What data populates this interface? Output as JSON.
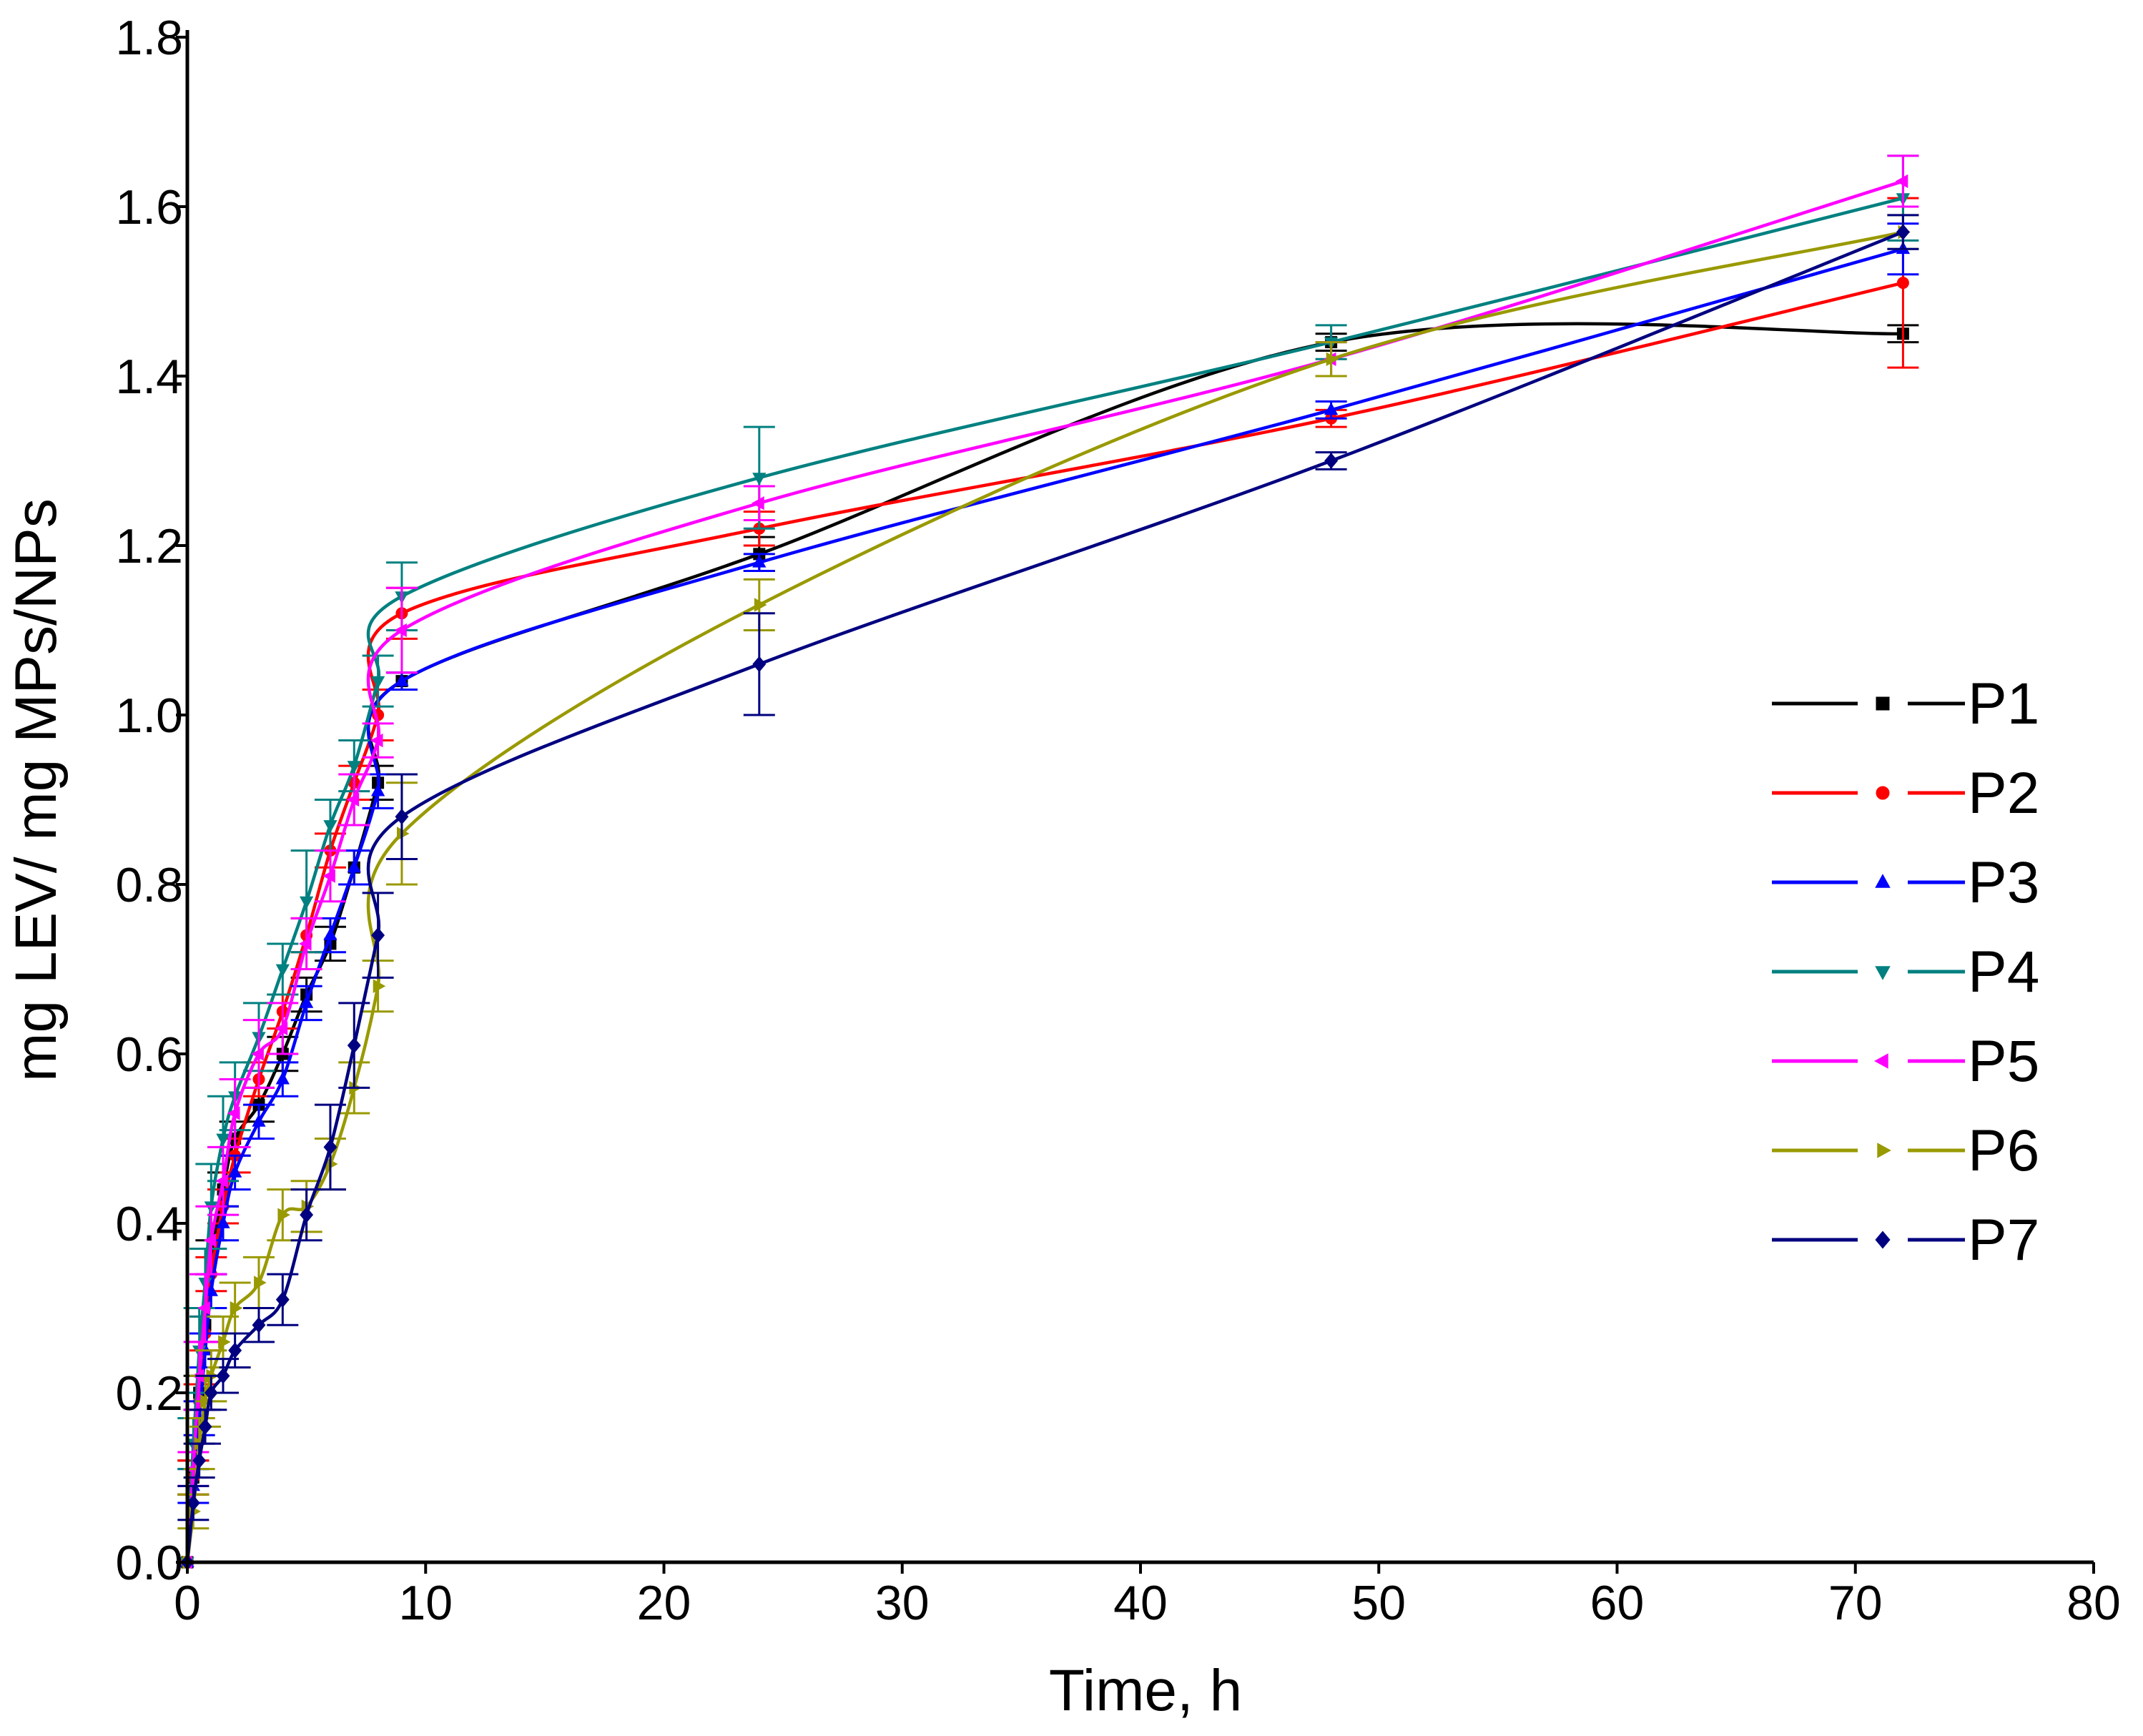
{
  "chart_data": {
    "type": "line",
    "title": "",
    "xlabel": "Time, h",
    "ylabel": "mg LEV/ mg MPs/NPs",
    "xlim": [
      0,
      80
    ],
    "ylim": [
      0,
      1.8
    ],
    "xticks": [
      0,
      10,
      20,
      30,
      40,
      50,
      60,
      70,
      80
    ],
    "yticks": [
      0.0,
      0.2,
      0.4,
      0.6,
      0.8,
      1.0,
      1.2,
      1.4,
      1.6,
      1.8
    ],
    "grid": false,
    "legend_position": "right",
    "x": [
      0,
      0.25,
      0.5,
      0.75,
      1,
      1.5,
      2,
      3,
      4,
      5,
      6,
      7,
      8,
      9,
      24,
      48,
      72
    ],
    "series": [
      {
        "name": "P1",
        "color": "#000000",
        "marker": "square",
        "values": [
          0.0,
          0.1,
          0.2,
          0.28,
          0.36,
          0.44,
          0.5,
          0.54,
          0.6,
          0.67,
          0.73,
          0.82,
          0.92,
          1.04,
          1.19,
          1.44,
          1.45
        ],
        "errors": [
          0.0,
          0.02,
          0.02,
          0.02,
          0.02,
          0.02,
          0.02,
          0.02,
          0.02,
          0.02,
          0.02,
          0.02,
          0.02,
          0.01,
          0.02,
          0.01,
          0.01
        ]
      },
      {
        "name": "P2",
        "color": "#ff0000",
        "marker": "circle",
        "values": [
          0.0,
          0.1,
          0.19,
          0.27,
          0.34,
          0.42,
          0.48,
          0.57,
          0.65,
          0.74,
          0.84,
          0.92,
          1.0,
          1.12,
          1.22,
          1.35,
          1.51
        ],
        "errors": [
          0.0,
          0.02,
          0.02,
          0.02,
          0.02,
          0.02,
          0.02,
          0.02,
          0.02,
          0.02,
          0.02,
          0.02,
          0.03,
          0.03,
          0.02,
          0.01,
          0.1
        ]
      },
      {
        "name": "P3",
        "color": "#0000ff",
        "marker": "triangle-up",
        "values": [
          0.0,
          0.09,
          0.17,
          0.25,
          0.32,
          0.4,
          0.46,
          0.52,
          0.57,
          0.66,
          0.74,
          0.82,
          0.91,
          1.04,
          1.18,
          1.36,
          1.55
        ],
        "errors": [
          0.0,
          0.02,
          0.02,
          0.02,
          0.02,
          0.02,
          0.02,
          0.02,
          0.02,
          0.02,
          0.02,
          0.02,
          0.02,
          0.01,
          0.01,
          0.01,
          0.03
        ]
      },
      {
        "name": "P4",
        "color": "#008080",
        "marker": "triangle-down",
        "values": [
          0.0,
          0.14,
          0.25,
          0.33,
          0.42,
          0.5,
          0.55,
          0.62,
          0.7,
          0.78,
          0.87,
          0.94,
          1.04,
          1.14,
          1.28,
          1.44,
          1.61
        ],
        "errors": [
          0.0,
          0.03,
          0.05,
          0.04,
          0.05,
          0.05,
          0.04,
          0.04,
          0.03,
          0.06,
          0.03,
          0.03,
          0.03,
          0.04,
          0.06,
          0.02,
          0.05
        ]
      },
      {
        "name": "P5",
        "color": "#ff00ff",
        "marker": "triangle-left",
        "values": [
          0.0,
          0.11,
          0.22,
          0.3,
          0.38,
          0.45,
          0.53,
          0.6,
          0.63,
          0.73,
          0.81,
          0.9,
          0.97,
          1.1,
          1.25,
          1.42,
          1.63
        ],
        "errors": [
          0.0,
          0.02,
          0.04,
          0.04,
          0.04,
          0.04,
          0.04,
          0.04,
          0.03,
          0.03,
          0.03,
          0.03,
          0.02,
          0.05,
          0.02,
          0.02,
          0.03
        ]
      },
      {
        "name": "P6",
        "color": "#999900",
        "marker": "triangle-right",
        "values": [
          0.0,
          0.06,
          0.14,
          0.19,
          0.22,
          0.26,
          0.3,
          0.33,
          0.41,
          0.42,
          0.47,
          0.56,
          0.68,
          0.86,
          1.13,
          1.42,
          1.57
        ],
        "errors": [
          0.0,
          0.02,
          0.03,
          0.03,
          0.03,
          0.03,
          0.03,
          0.03,
          0.03,
          0.03,
          0.03,
          0.03,
          0.03,
          0.06,
          0.03,
          0.02,
          0.02
        ]
      },
      {
        "name": "P7",
        "color": "#000080",
        "marker": "diamond",
        "values": [
          0.0,
          0.07,
          0.12,
          0.16,
          0.2,
          0.22,
          0.25,
          0.28,
          0.31,
          0.41,
          0.49,
          0.61,
          0.74,
          0.88,
          1.06,
          1.3,
          1.57
        ],
        "errors": [
          0.0,
          0.02,
          0.02,
          0.02,
          0.02,
          0.02,
          0.02,
          0.02,
          0.03,
          0.03,
          0.05,
          0.05,
          0.05,
          0.05,
          0.06,
          0.01,
          0.02
        ]
      }
    ]
  }
}
